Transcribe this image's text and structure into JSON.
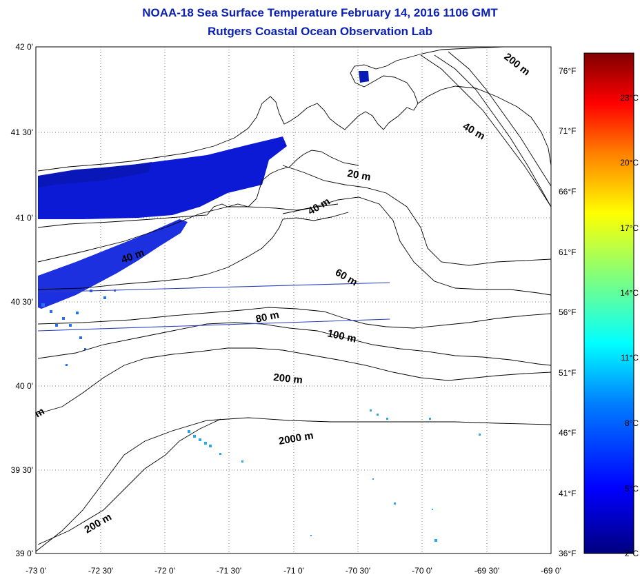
{
  "title": {
    "line1": "NOAA-18 Sea Surface Temperature February 14, 2016 1106 GMT",
    "line2": "Rutgers Coastal Ocean Observation Lab"
  },
  "map": {
    "latitude_labels": [
      "42 0'",
      "41 30'",
      "41 0'",
      "40 30'",
      "40 0'",
      "39 30'",
      "39 0'"
    ],
    "longitude_labels": [
      "-73 0'",
      "-72 30'",
      "-72 0'",
      "-71 30'",
      "-71 0'",
      "-70 30'",
      "-70 0'",
      "-69 30'",
      "-69 0'"
    ],
    "fahrenheit_labels": [
      "76°F",
      "71°F",
      "66°F",
      "61°F",
      "56°F",
      "51°F",
      "46°F",
      "41°F",
      "36°F"
    ],
    "contour_labels": [
      "200 m",
      "40 m",
      "20 m",
      "40 m",
      "40 m",
      "60 m",
      "80 m",
      "100 m",
      "200 m",
      "2000 m",
      "200 m",
      "m"
    ]
  },
  "colorbar": {
    "labels": [
      "23°C",
      "20°C",
      "17°C",
      "14°C",
      "11°C",
      "8°C",
      "5°C",
      "2°C"
    ],
    "min_c": 2,
    "max_c": 25,
    "colors": [
      "#00007f",
      "#0000ff",
      "#007fff",
      "#00ffff",
      "#7fff7f",
      "#ffff00",
      "#ff7f00",
      "#ff0000",
      "#7f0000"
    ]
  }
}
